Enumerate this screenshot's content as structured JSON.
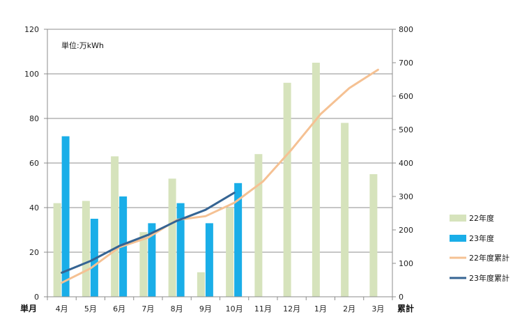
{
  "chart_data": {
    "type": "bar+line",
    "unit_label": "単位:万kWh",
    "xlabel_left": "単月",
    "ylabel_right": "累計",
    "categories": [
      "4月",
      "5月",
      "6月",
      "7月",
      "8月",
      "9月",
      "10月",
      "11月",
      "12月",
      "1月",
      "2月",
      "3月"
    ],
    "y_left": {
      "min": 0,
      "max": 120,
      "ticks": [
        0,
        20,
        40,
        60,
        80,
        100,
        120
      ]
    },
    "y_right": {
      "min": 0,
      "max": 800,
      "ticks": [
        0,
        100,
        200,
        300,
        400,
        500,
        600,
        700,
        800
      ]
    },
    "bar_series": [
      {
        "name": "22年度",
        "color": "#d6e3bc",
        "values": [
          42,
          43,
          63,
          29,
          53,
          11,
          40,
          64,
          96,
          105,
          78,
          55
        ]
      },
      {
        "name": "23年度",
        "color": "#1aaee8",
        "values": [
          72,
          35,
          45,
          33,
          42,
          33,
          51,
          null,
          null,
          null,
          null,
          null
        ]
      }
    ],
    "line_series": [
      {
        "name": "22年度累計",
        "color": "#f5c193",
        "values": [
          42,
          85,
          148,
          177,
          230,
          241,
          281,
          345,
          441,
          546,
          624,
          679
        ]
      },
      {
        "name": "23年度累計",
        "color": "#356493",
        "values": [
          72,
          107,
          152,
          185,
          227,
          260,
          311,
          null,
          null,
          null,
          null,
          null
        ]
      }
    ],
    "grid": "horizontal",
    "legend_position": "right"
  }
}
